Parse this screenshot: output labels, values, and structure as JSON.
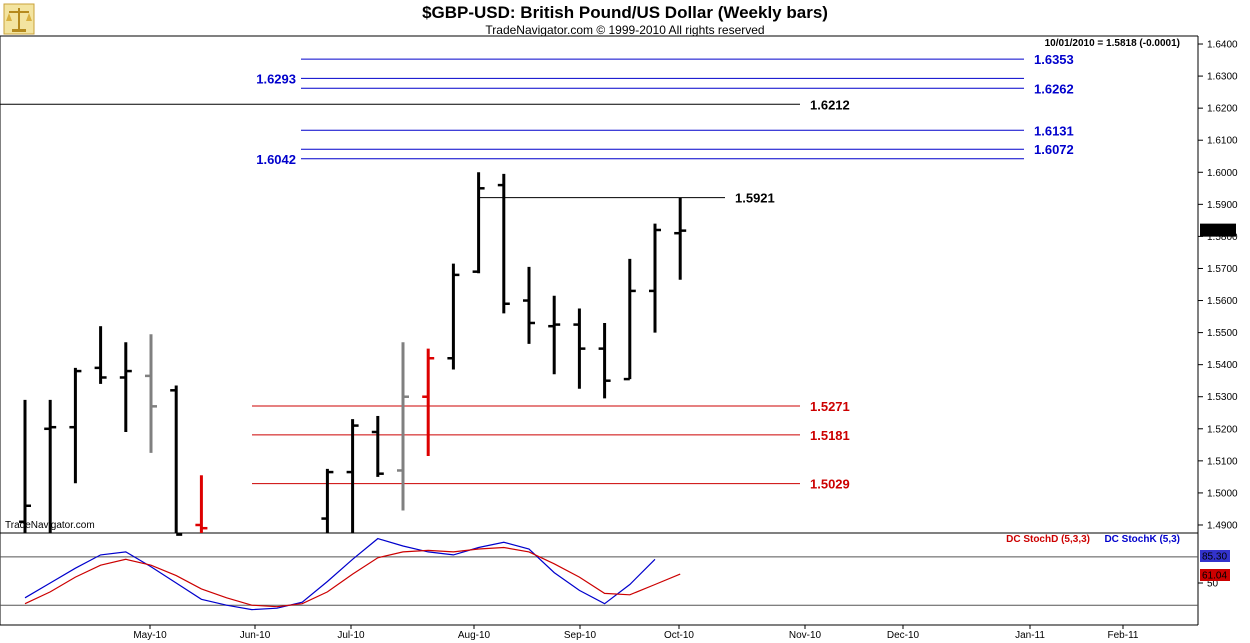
{
  "header": {
    "title": "$GBP-USD:  British Pound/US Dollar  (Weekly bars)",
    "subtitle": "TradeNavigator.com © 1999-2010 All rights reserved",
    "quote_readout": "10/01/2010 = 1.5818 (-0.0001)",
    "watermark": "TradeNavigator.com",
    "logo_icon": "scales-icon"
  },
  "colors": {
    "blue_level": "#0000cc",
    "black_level": "#000000",
    "red_level": "#cc0000",
    "stoch_d": "#cc0000",
    "stoch_k": "#0000cc",
    "bar_black": "#000000",
    "bar_gray": "#808080",
    "bar_red": "#dd0000"
  },
  "chart_data": [
    {
      "type": "ohlc",
      "name": "price",
      "title": "$GBP-USD:  British Pound/US Dollar  (Weekly bars)",
      "x_labels": [
        "May-10",
        "Jun-10",
        "Jul-10",
        "Aug-10",
        "Sep-10",
        "Oct-10",
        "Nov-10",
        "Dec-10",
        "Jan-11",
        "Feb-11"
      ],
      "y_ticks": [
        "1.4900",
        "1.5000",
        "1.5100",
        "1.5200",
        "1.5300",
        "1.5400",
        "1.5500",
        "1.5600",
        "1.5700",
        "1.5800",
        "1.5900",
        "1.6000",
        "1.6100",
        "1.6200",
        "1.6300",
        "1.6400"
      ],
      "ylim": [
        1.4875,
        1.6425
      ],
      "last_price": "1.5818",
      "bars": [
        {
          "w": 0,
          "open": 1.491,
          "high": 1.529,
          "low": 1.487,
          "close": 1.496,
          "color": "black"
        },
        {
          "w": 1,
          "open": 1.52,
          "high": 1.529,
          "low": 1.487,
          "close": 1.5205,
          "color": "black"
        },
        {
          "w": 2,
          "open": 1.5205,
          "high": 1.539,
          "low": 1.503,
          "close": 1.538,
          "color": "black"
        },
        {
          "w": 3,
          "open": 1.539,
          "high": 1.552,
          "low": 1.534,
          "close": 1.536,
          "color": "black"
        },
        {
          "w": 4,
          "open": 1.536,
          "high": 1.547,
          "low": 1.519,
          "close": 1.538,
          "color": "black"
        },
        {
          "w": 5,
          "open": 1.5365,
          "high": 1.5495,
          "low": 1.5125,
          "close": 1.527,
          "color": "gray"
        },
        {
          "w": 6,
          "open": 1.532,
          "high": 1.5335,
          "low": 1.487,
          "close": 1.487,
          "color": "black"
        },
        {
          "w": 7,
          "open": 1.49,
          "high": 1.5055,
          "low": 1.4875,
          "close": 1.489,
          "color": "red"
        },
        {
          "w": 12,
          "open": 1.492,
          "high": 1.5075,
          "low": 1.487,
          "close": 1.5065,
          "color": "black"
        },
        {
          "w": 13,
          "open": 1.5065,
          "high": 1.523,
          "low": 1.487,
          "close": 1.521,
          "color": "black"
        },
        {
          "w": 14,
          "open": 1.519,
          "high": 1.524,
          "low": 1.505,
          "close": 1.506,
          "color": "black"
        },
        {
          "w": 15,
          "open": 1.507,
          "high": 1.547,
          "low": 1.4945,
          "close": 1.53,
          "color": "gray"
        },
        {
          "w": 16,
          "open": 1.53,
          "high": 1.545,
          "low": 1.5115,
          "close": 1.542,
          "color": "red"
        },
        {
          "w": 17,
          "open": 1.542,
          "high": 1.5715,
          "low": 1.5385,
          "close": 1.568,
          "color": "black"
        },
        {
          "w": 18,
          "open": 1.569,
          "high": 1.6,
          "low": 1.5685,
          "close": 1.595,
          "color": "black"
        },
        {
          "w": 19,
          "open": 1.596,
          "high": 1.5995,
          "low": 1.556,
          "close": 1.559,
          "color": "black"
        },
        {
          "w": 20,
          "open": 1.56,
          "high": 1.5705,
          "low": 1.5465,
          "close": 1.553,
          "color": "black"
        },
        {
          "w": 21,
          "open": 1.552,
          "high": 1.5615,
          "low": 1.537,
          "close": 1.5525,
          "color": "black"
        },
        {
          "w": 22,
          "open": 1.5525,
          "high": 1.5575,
          "low": 1.5325,
          "close": 1.545,
          "color": "black"
        },
        {
          "w": 23,
          "open": 1.545,
          "high": 1.553,
          "low": 1.5295,
          "close": 1.535,
          "color": "black"
        },
        {
          "w": 24,
          "open": 1.5355,
          "high": 1.573,
          "low": 1.5355,
          "close": 1.563,
          "color": "black"
        },
        {
          "w": 25,
          "open": 1.563,
          "high": 1.584,
          "low": 1.55,
          "close": 1.582,
          "color": "black"
        },
        {
          "w": 26,
          "open": 1.581,
          "high": 1.5921,
          "low": 1.5665,
          "close": 1.5818,
          "color": "black"
        }
      ],
      "levels": [
        {
          "value": 1.6353,
          "label": "1.6353",
          "color": "blue",
          "label_side": "right"
        },
        {
          "value": 1.6293,
          "label": "1.6293",
          "color": "blue",
          "label_side": "left"
        },
        {
          "value": 1.6262,
          "label": "1.6262",
          "color": "blue",
          "label_side": "right"
        },
        {
          "value": 1.6212,
          "label": "1.6212",
          "color": "black",
          "label_side": "right"
        },
        {
          "value": 1.6131,
          "label": "1.6131",
          "color": "blue",
          "label_side": "right"
        },
        {
          "value": 1.6072,
          "label": "1.6072",
          "color": "blue",
          "label_side": "right"
        },
        {
          "value": 1.6042,
          "label": "1.6042",
          "color": "blue",
          "label_side": "left"
        },
        {
          "value": 1.5921,
          "label": "1.5921",
          "color": "black",
          "label_side": "right"
        },
        {
          "value": 1.5271,
          "label": "1.5271",
          "color": "red",
          "label_side": "right"
        },
        {
          "value": 1.5181,
          "label": "1.5181",
          "color": "red",
          "label_side": "right"
        },
        {
          "value": 1.5029,
          "label": "1.5029",
          "color": "red",
          "label_side": "right"
        }
      ]
    },
    {
      "type": "line",
      "name": "stochastic",
      "legend": [
        "DC StochD (5,3,3)",
        "DC StochK (5,3)"
      ],
      "y_ticks": [
        "50"
      ],
      "ylim": [
        0,
        100
      ],
      "reference_levels": [
        85.3,
        20
      ],
      "last_values": [
        "85.30",
        "61.04"
      ],
      "series": [
        {
          "name": "DC StochK (5,3)",
          "color": "blue",
          "points": [
            [
              0,
              30
            ],
            [
              1,
              50
            ],
            [
              2,
              70
            ],
            [
              3,
              88
            ],
            [
              4,
              92
            ],
            [
              5,
              72
            ],
            [
              6,
              50
            ],
            [
              7,
              28
            ],
            [
              8,
              20
            ],
            [
              9,
              14
            ],
            [
              10,
              16
            ],
            [
              11,
              24
            ],
            [
              12,
              52
            ],
            [
              13,
              82
            ],
            [
              14,
              110
            ],
            [
              15,
              100
            ],
            [
              16,
              92
            ],
            [
              17,
              88
            ],
            [
              18,
              98
            ],
            [
              19,
              105
            ],
            [
              20,
              96
            ],
            [
              21,
              64
            ],
            [
              22,
              40
            ],
            [
              23,
              22
            ],
            [
              24,
              48
            ],
            [
              25,
              82
            ]
          ]
        },
        {
          "name": "DC StochD (5,3,3)",
          "color": "red",
          "points": [
            [
              0,
              22
            ],
            [
              1,
              38
            ],
            [
              2,
              58
            ],
            [
              3,
              74
            ],
            [
              4,
              82
            ],
            [
              5,
              74
            ],
            [
              6,
              60
            ],
            [
              7,
              42
            ],
            [
              8,
              30
            ],
            [
              9,
              20
            ],
            [
              10,
              18
            ],
            [
              11,
              22
            ],
            [
              12,
              38
            ],
            [
              13,
              62
            ],
            [
              14,
              84
            ],
            [
              15,
              92
            ],
            [
              16,
              94
            ],
            [
              17,
              92
            ],
            [
              18,
              96
            ],
            [
              19,
              98
            ],
            [
              20,
              92
            ],
            [
              21,
              76
            ],
            [
              22,
              58
            ],
            [
              23,
              36
            ],
            [
              24,
              34
            ],
            [
              25,
              48
            ],
            [
              26,
              62
            ]
          ]
        }
      ]
    }
  ]
}
